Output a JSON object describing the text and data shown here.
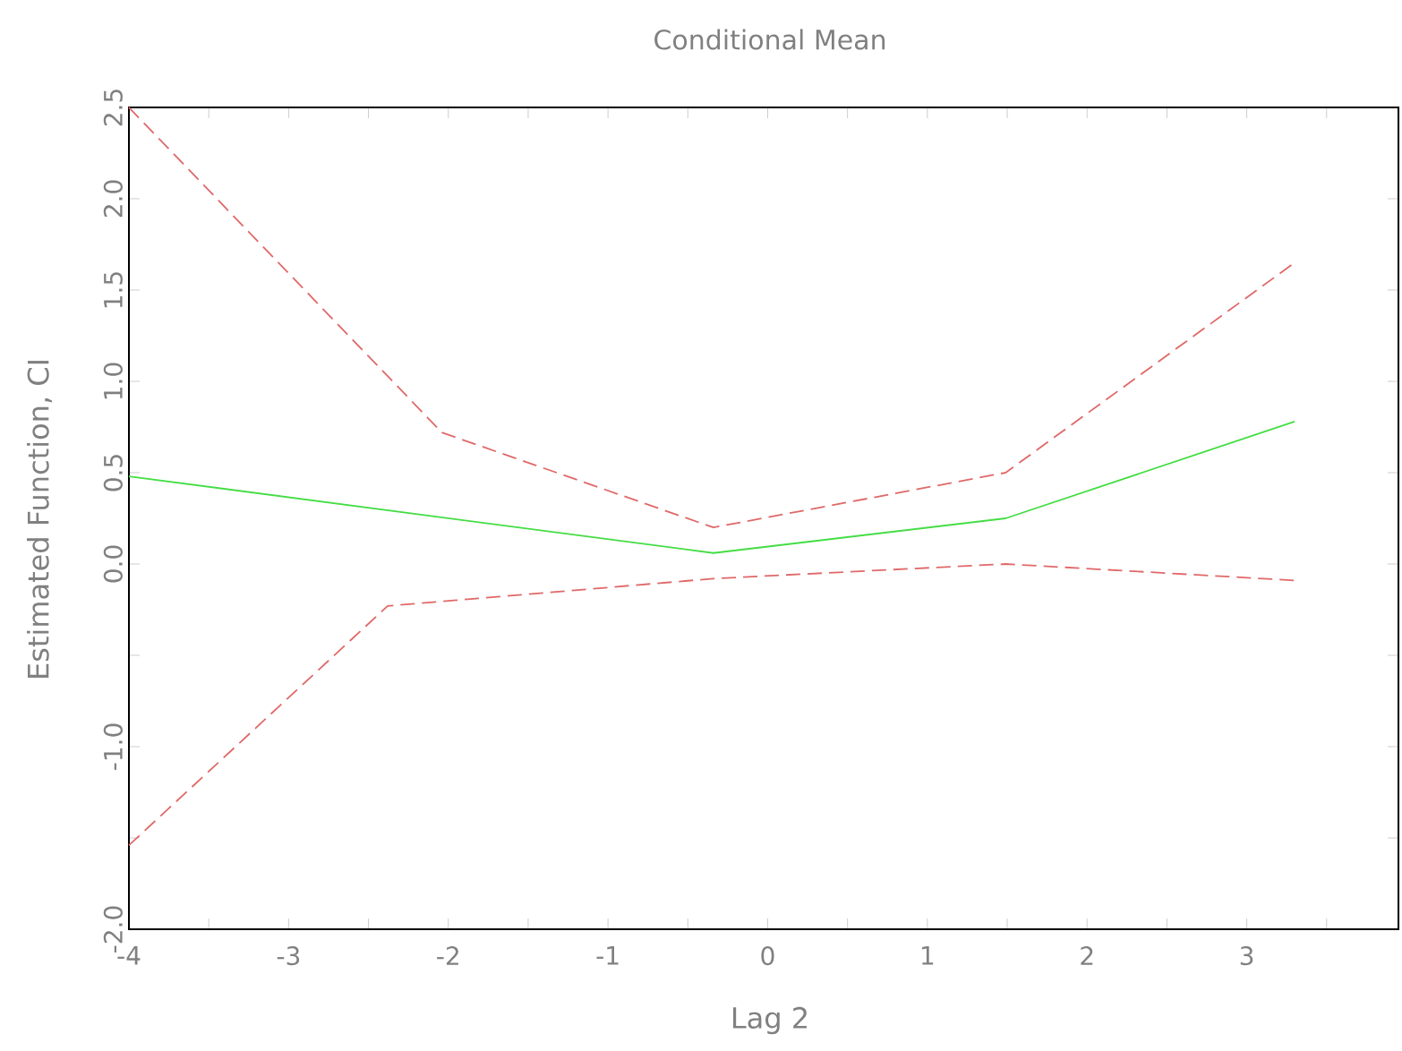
{
  "chart_data": {
    "type": "line",
    "title": "Conditional Mean",
    "xlabel": "Lag  2",
    "ylabel": "Estimated Function, CI",
    "xlim": [
      -4,
      3.95
    ],
    "ylim": [
      -2,
      2.5
    ],
    "xticks": [
      -4,
      {
        "value": -3.5,
        "label": null
      },
      -3,
      {
        "value": -2.5,
        "label": null
      },
      -2,
      {
        "value": -1.5,
        "label": null
      },
      -1,
      {
        "value": -0.5,
        "label": null
      },
      0,
      {
        "value": 0.5,
        "label": null
      },
      1,
      {
        "value": 1.5,
        "label": null
      },
      2,
      {
        "value": 2.5,
        "label": null
      },
      3,
      {
        "value": 3.5,
        "label": null
      }
    ],
    "yticks": [
      {
        "value": -2,
        "label": "-2.0"
      },
      {
        "value": -1.5,
        "label": null
      },
      {
        "value": -1,
        "label": "-1.0"
      },
      {
        "value": -0.5,
        "label": null
      },
      {
        "value": 0,
        "label": "0.0"
      },
      {
        "value": 0.5,
        "label": "0.5"
      },
      {
        "value": 1,
        "label": "1.0"
      },
      {
        "value": 1.5,
        "label": "1.5"
      },
      {
        "value": 2,
        "label": "2.0"
      },
      {
        "value": 2.5,
        "label": "2.5"
      }
    ],
    "marker": "none",
    "series": [
      {
        "color": "#44dd44",
        "line_style": "solid",
        "x": [
          -4,
          -0.34,
          1.49,
          3.3
        ],
        "values": [
          0.48,
          0.06,
          0.25,
          0.78
        ]
      },
      {
        "color": "#e06868",
        "line_style": "dashed",
        "x": [
          -4,
          -2.04,
          -0.34,
          1.49,
          3.3
        ],
        "values": [
          2.5,
          0.72,
          0.2,
          0.5,
          1.65
        ]
      },
      {
        "color": "#e06868",
        "line_style": "dashed",
        "x": [
          -4,
          -2.38,
          -0.34,
          1.49,
          3.3
        ],
        "values": [
          -1.54,
          -0.23,
          -0.08,
          0.0,
          -0.09
        ]
      }
    ]
  }
}
